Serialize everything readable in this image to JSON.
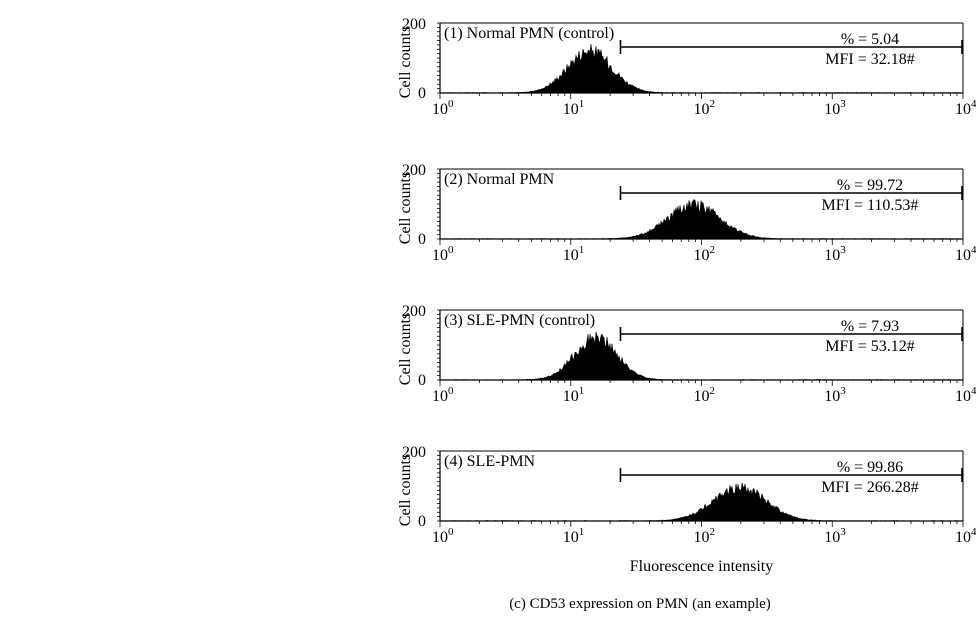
{
  "figure": {
    "caption": "(c)  CD53 expression on PMN (an example)",
    "xlabel": "Fluorescence intensity",
    "ylabel": "Cell counts"
  },
  "chart_data": [
    {
      "type": "histogram",
      "panel_label": "(1) Normal PMN (control)",
      "xscale": "log",
      "xlim": [
        1,
        10000
      ],
      "ylim": [
        0,
        200
      ],
      "y_ticks": [
        "0",
        "200"
      ],
      "x_ticks": [
        "10^0",
        "10^1",
        "10^2",
        "10^3",
        "10^4"
      ],
      "xlabel": "",
      "ylabel": "Cell counts",
      "percent_text": "% = 5.04",
      "mfi_text": "MFI = 32.18#",
      "gate": {
        "from": 24,
        "to": 10000
      },
      "distribution": {
        "peak_x": 14,
        "peak_y": 140,
        "width_log10": 0.17
      }
    },
    {
      "type": "histogram",
      "panel_label": "(2) Normal PMN",
      "xscale": "log",
      "xlim": [
        1,
        10000
      ],
      "ylim": [
        0,
        200
      ],
      "y_ticks": [
        "0",
        "200"
      ],
      "x_ticks": [
        "10^0",
        "10^1",
        "10^2",
        "10^3",
        "10^4"
      ],
      "xlabel": "",
      "ylabel": "Cell counts",
      "percent_text": "% = 99.72",
      "mfi_text": "MFI = 110.53#",
      "gate": {
        "from": 24,
        "to": 10000
      },
      "distribution": {
        "peak_x": 88,
        "peak_y": 112,
        "width_log10": 0.2
      }
    },
    {
      "type": "histogram",
      "panel_label": "(3) SLE-PMN (control)",
      "xscale": "log",
      "xlim": [
        1,
        10000
      ],
      "ylim": [
        0,
        200
      ],
      "y_ticks": [
        "0",
        "200"
      ],
      "x_ticks": [
        "10^0",
        "10^1",
        "10^2",
        "10^3",
        "10^4"
      ],
      "xlabel": "",
      "ylabel": "Cell counts",
      "percent_text": "% = 7.93",
      "mfi_text": "MFI = 53.12#",
      "gate": {
        "from": 24,
        "to": 10000
      },
      "distribution": {
        "peak_x": 15.5,
        "peak_y": 140,
        "width_log10": 0.16
      }
    },
    {
      "type": "histogram",
      "panel_label": "(4) SLE-PMN",
      "xscale": "log",
      "xlim": [
        1,
        10000
      ],
      "ylim": [
        0,
        200
      ],
      "y_ticks": [
        "0",
        "200"
      ],
      "x_ticks": [
        "10^0",
        "10^1",
        "10^2",
        "10^3",
        "10^4"
      ],
      "xlabel": "Fluorescence intensity",
      "ylabel": "Cell counts",
      "percent_text": "% = 99.86",
      "mfi_text": "MFI = 266.28#",
      "gate": {
        "from": 24,
        "to": 10000
      },
      "distribution": {
        "peak_x": 195,
        "peak_y": 112,
        "width_log10": 0.2
      }
    }
  ]
}
